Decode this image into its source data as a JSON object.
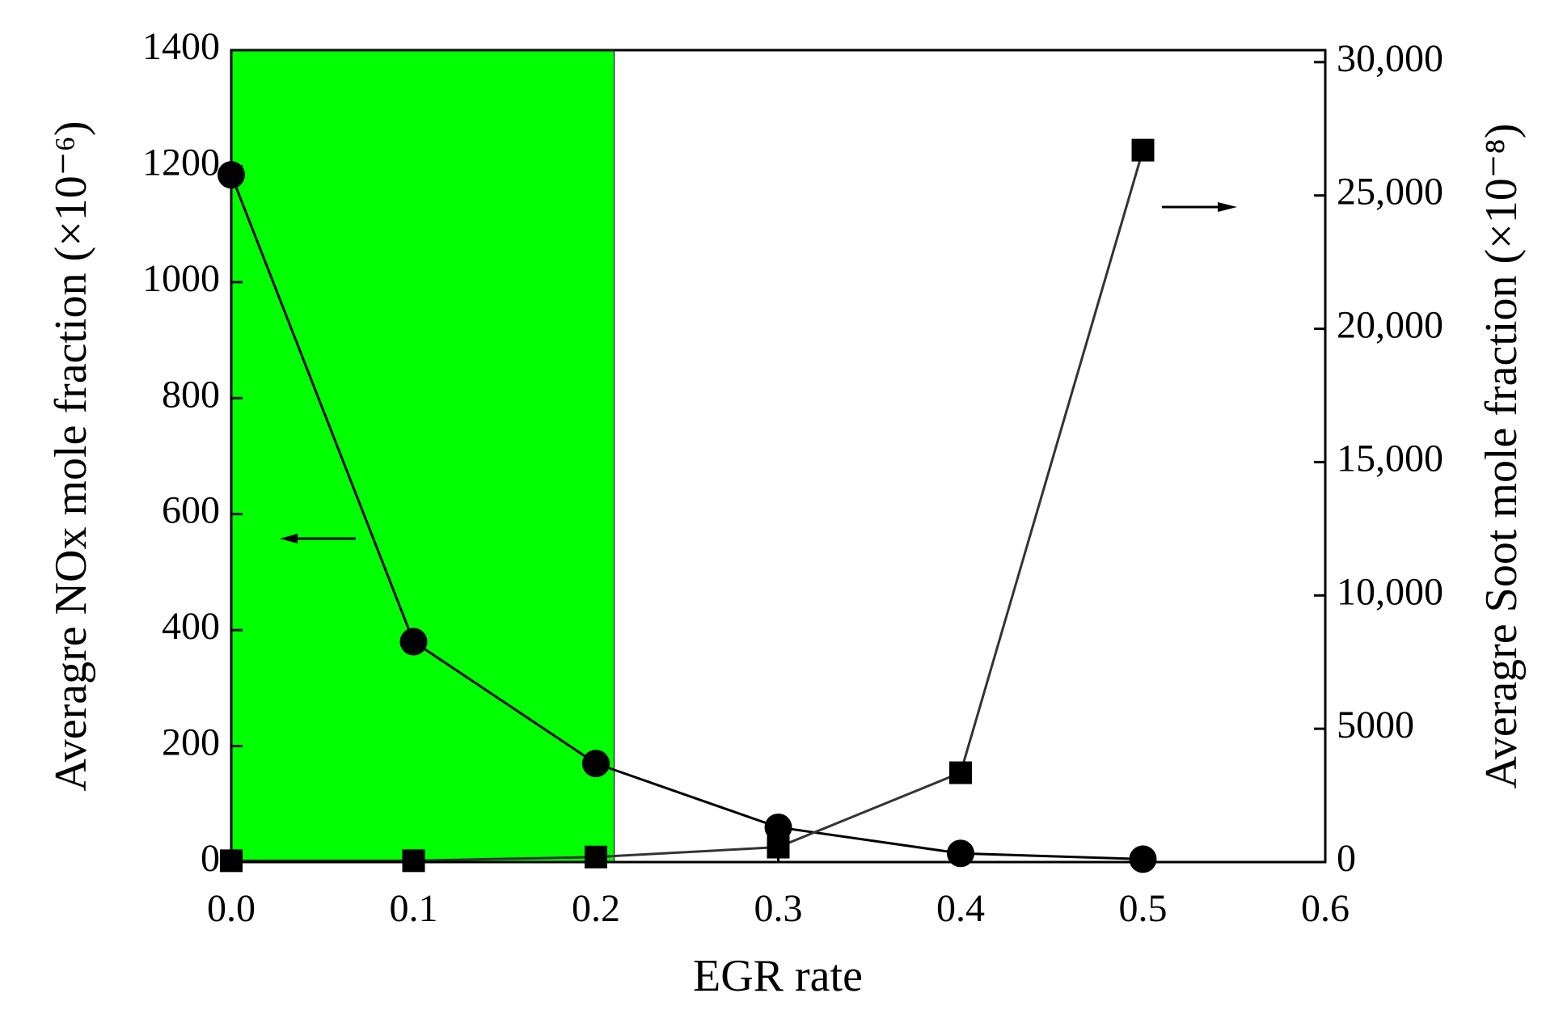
{
  "chart_data": {
    "type": "line",
    "xlabel": "EGR rate",
    "ylabel": "Averagre NOx mole fraction (×10⁻⁶)",
    "y2label": "Averagre Soot mole fraction (×10⁻⁸)",
    "x": [
      0,
      0.1,
      0.2,
      0.3,
      0.4,
      0.5
    ],
    "series": [
      {
        "name": "NOx",
        "color": "#000000",
        "marker": "circle",
        "values": [
          1185,
          380,
          170,
          60,
          15,
          5
        ]
      },
      {
        "name": "Soot",
        "color": "#333333",
        "marker": "square",
        "axis": "y2",
        "values": [
          50,
          50,
          190,
          560,
          3350,
          26700
        ]
      }
    ],
    "xlim": [
      0,
      0.6
    ],
    "xticks": [
      {
        "value": 0,
        "label": "0.0"
      },
      0.1,
      0.2,
      0.3,
      0.4,
      0.5,
      0.6
    ],
    "ylim": [
      0,
      1400
    ],
    "yticks": [
      0,
      200,
      400,
      600,
      800,
      1000,
      1200,
      1400
    ],
    "y2lim": [
      0,
      30450
    ],
    "y2ticks": [
      0,
      5000,
      {
        "value": 10000,
        "label": "10,000"
      },
      {
        "value": 15000,
        "label": "15,000"
      },
      {
        "value": 20000,
        "label": "20,000"
      },
      {
        "value": 25000,
        "label": "25,000"
      },
      {
        "value": 30000,
        "label": "30,000"
      }
    ],
    "shaded_region": {
      "xlim": [
        0,
        0.21
      ],
      "color": "#00ff00"
    }
  }
}
